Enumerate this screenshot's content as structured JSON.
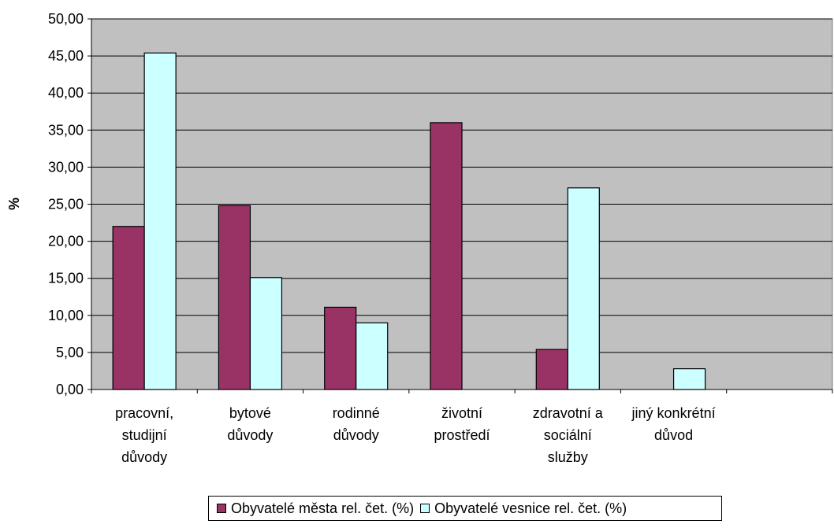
{
  "chart_data": {
    "type": "bar",
    "ylabel": "%",
    "ylim": [
      0,
      50
    ],
    "ytick_step": 5,
    "ytick_labels": [
      "0,00",
      "5,00",
      "10,00",
      "15,00",
      "20,00",
      "25,00",
      "30,00",
      "35,00",
      "40,00",
      "45,00",
      "50,00"
    ],
    "grid": true,
    "legend_position": "bottom",
    "plot_background": "#c0c0c0",
    "categories": [
      [
        "pracovní,",
        "studijní",
        "důvody"
      ],
      [
        "bytové",
        "důvody"
      ],
      [
        "rodinné",
        "důvody"
      ],
      [
        "životní",
        "prostředí"
      ],
      [
        "zdravotní a",
        "sociální",
        "služby"
      ],
      [
        "jiný konkrétní",
        "důvod"
      ],
      []
    ],
    "series": [
      {
        "name": "Obyvatelé města rel. čet. (%)",
        "color": "#993366",
        "values": [
          22.0,
          24.8,
          11.1,
          36.0,
          5.4,
          null,
          null
        ]
      },
      {
        "name": "Obyvatelé vesnice rel. čet. (%)",
        "color": "#ccffff",
        "values": [
          45.4,
          15.1,
          9.0,
          null,
          27.2,
          2.8,
          null
        ]
      }
    ]
  }
}
